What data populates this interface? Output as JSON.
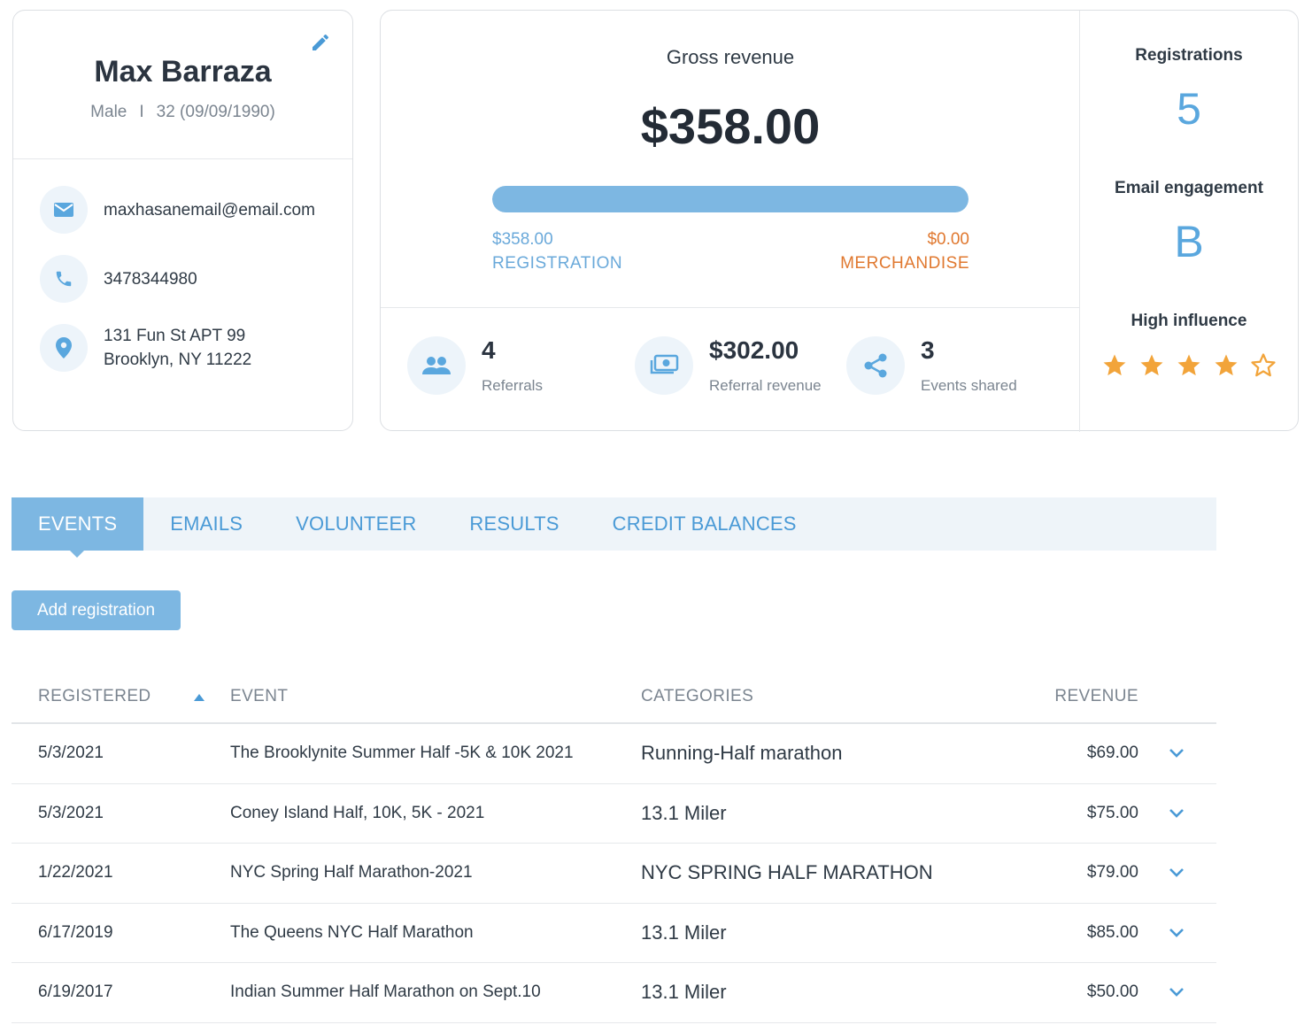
{
  "profile": {
    "name": "Max Barraza",
    "gender": "Male",
    "age_dob": "32 (09/09/1990)",
    "email": "maxhasanemail@email.com",
    "phone": "3478344980",
    "address_line1": "131 Fun St APT 99",
    "address_line2": "Brooklyn, NY 11222",
    "separator": "I"
  },
  "revenue": {
    "gross_label": "Gross revenue",
    "gross_value": "$358.00",
    "registration_amount": "$358.00",
    "registration_label": "REGISTRATION",
    "merchandise_amount": "$0.00",
    "merchandise_label": "MERCHANDISE",
    "registration_fraction": 1.0,
    "colors": {
      "registration": "#6aa9da",
      "merchandise": "#e0782f"
    }
  },
  "stats": [
    {
      "value": "4",
      "label": "Referrals",
      "icon": "people-icon"
    },
    {
      "value": "$302.00",
      "label": "Referral revenue",
      "icon": "money-icon"
    },
    {
      "value": "3",
      "label": "Events shared",
      "icon": "share-icon"
    }
  ],
  "side": {
    "registrations_label": "Registrations",
    "registrations_value": "5",
    "email_label": "Email engagement",
    "email_value": "B",
    "influence_label": "High influence",
    "influence_rating": 4,
    "influence_max": 5
  },
  "tabs": [
    {
      "label": "EVENTS",
      "active": true
    },
    {
      "label": "EMAILS",
      "active": false
    },
    {
      "label": "VOLUNTEER",
      "active": false
    },
    {
      "label": "RESULTS",
      "active": false
    },
    {
      "label": "CREDIT BALANCES",
      "active": false
    }
  ],
  "add_registration_label": "Add registration",
  "table": {
    "headers": {
      "registered": "REGISTERED",
      "event": "EVENT",
      "categories": "CATEGORIES",
      "revenue": "REVENUE"
    },
    "rows": [
      {
        "registered": "5/3/2021",
        "event": "The Brooklynite Summer Half -5K & 10K 2021",
        "category": "Running-Half marathon",
        "revenue": "$69.00"
      },
      {
        "registered": "5/3/2021",
        "event": "Coney Island Half, 10K, 5K - 2021",
        "category": "13.1 Miler",
        "revenue": "$75.00"
      },
      {
        "registered": "1/22/2021",
        "event": "NYC Spring Half Marathon-2021",
        "category": "NYC SPRING HALF MARATHON",
        "revenue": "$79.00"
      },
      {
        "registered": "6/17/2019",
        "event": "The Queens NYC Half Marathon",
        "category": "13.1 Miler",
        "revenue": "$85.00"
      },
      {
        "registered": "6/19/2017",
        "event": "Indian Summer Half Marathon on Sept.10",
        "category": "13.1 Miler",
        "revenue": "$50.00"
      }
    ]
  },
  "accent_color": "#7db7e2"
}
